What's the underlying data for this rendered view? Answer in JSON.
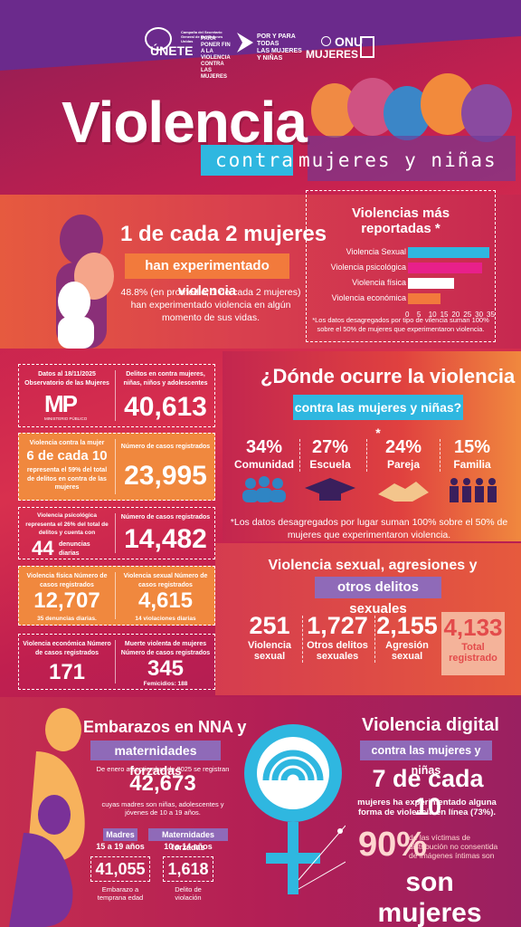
{
  "header": {
    "logo1_main": "ÚNETE",
    "logo1_sub": "Campaña del Secretario General de las Naciones Unidas",
    "logo1_tagline": "PARA PONER FIN A LA VIOLENCIA CONTRA LAS MUJERES",
    "logo2_line1": "POR Y PARA",
    "logo2_line2": "TODAS",
    "logo2_line3": "LAS MUJERES",
    "logo2_line4": "Y NIÑAS",
    "logo3_line1": "ONU",
    "logo3_line2": "MUJERES"
  },
  "title": {
    "main": "Violencia",
    "sub1": "contra",
    "sub2": "mujeres y niñas"
  },
  "stat_block": {
    "headline": "1 de cada 2 mujeres",
    "pill": "han experimentado violencia",
    "paragraph": "48.8% (en promedio, 1 de cada 2 mujeres) han experimentado violencia en algún momento de sus vidas."
  },
  "reported": {
    "title": "Violencias más reportadas *",
    "note": "*Los datos desagregados por tipo de vilencia suman 100% sobre el 50% de mujeres que experimentaron violencia."
  },
  "chart_data": {
    "type": "bar",
    "title": "Violencias más reportadas *",
    "categories": [
      "Violencia Sexual",
      "Violencia psicológica",
      "Violencia física",
      "Violencia económica"
    ],
    "values": [
      35,
      32,
      20,
      14
    ],
    "colors": [
      "#2fb7e0",
      "#e8208a",
      "#ffffff",
      "#f27a3c"
    ],
    "xlim": [
      0,
      35
    ],
    "xticks": [
      "0",
      "5",
      "10",
      "15",
      "20",
      "25",
      "30",
      "35"
    ]
  },
  "cards": {
    "c1": {
      "left_a": "Datos al 18/11/2025",
      "left_b": "Observatorio de las Mujeres",
      "logo": "MP",
      "logo_sub": "MINISTERIO PÚBLICO",
      "right_lbl": "Delitos en contra mujeres, niñas, niños y adolescentes",
      "right_num": "40,613"
    },
    "c2": {
      "left_head": "6 de cada 10",
      "left_text": "representa el 59% del total de delitos en contra de las mujeres",
      "left_lbl": "Violencia contra la mujer",
      "right_lbl": "Número de casos registrados",
      "right_num": "23,995"
    },
    "c3": {
      "left_lbl": "Violencia psicológica representa el 26% del total de delitos y cuenta con",
      "left_num": "44",
      "left_unit": "denuncias diarias",
      "right_lbl": "Número de casos registrados",
      "right_num": "14,482"
    },
    "c4": {
      "a_lbl": "Violencia física Número de casos registrados",
      "a_num": "12,707",
      "a_sub": "35 denuncias diarias.",
      "b_lbl": "Violencia sexual Número de casos registrados",
      "b_num": "4,615",
      "b_sub": "14 violaciones diarias"
    },
    "c5": {
      "a_lbl": "Violencia económica Número de casos registrados",
      "a_num": "171",
      "b_lbl": "Muerte violenta de mujeres Número de casos registrados",
      "b_num": "345",
      "b_sub": "Femicidios: 188"
    }
  },
  "where": {
    "title": "¿Dónde ocurre la violencia",
    "pill": "contra las mujeres y niñas? *",
    "items": [
      {
        "pct": "34%",
        "label": "Comunidad"
      },
      {
        "pct": "27%",
        "label": "Escuela"
      },
      {
        "pct": "24%",
        "label": "Pareja"
      },
      {
        "pct": "15%",
        "label": "Familia"
      }
    ],
    "note": "*Los datos desagregados por lugar suman 100% sobre el 50% de mujeres que experimentaron violencia."
  },
  "sexual": {
    "title": "Violencia sexual, agresiones y",
    "pill": "otros delitos sexuales",
    "items": [
      {
        "num": "251",
        "label": "Violencia sexual"
      },
      {
        "num": "1,727",
        "label": "Otros delitos sexuales"
      },
      {
        "num": "2,155",
        "label": "Agresión sexual"
      }
    ],
    "total_num": "4,133",
    "total_label": "Total registrado"
  },
  "embarazos": {
    "title": "Embarazos en NNA y",
    "pill": "maternidades forzadas",
    "intro": "De enero a septiembre de 2025 se registran",
    "num": "42,673",
    "desc": "cuyas madres son niñas, adolescentes y jóvenes de 10 a 19 años.",
    "m1_pill": "Madres",
    "m1_age": "15 a 19 años",
    "m1_num": "41,055",
    "m1_sub": "Embarazo a temprana edad",
    "m2_pill": "Maternidades forzadas",
    "m2_age": "10 a 14 años",
    "m2_num": "1,618",
    "m2_sub": "Delito de violación"
  },
  "digital": {
    "title": "Violencia digital",
    "pill": "contra las mujeres y niñas",
    "stat": "7 de cada 10",
    "para": "mujeres ha experimentado alguna forma de violencia en línea (73%).",
    "pct": "90%",
    "pct_text": "de las víctimas de distribución no consentida de imágenes íntimas son",
    "closing": "son mujeres"
  }
}
